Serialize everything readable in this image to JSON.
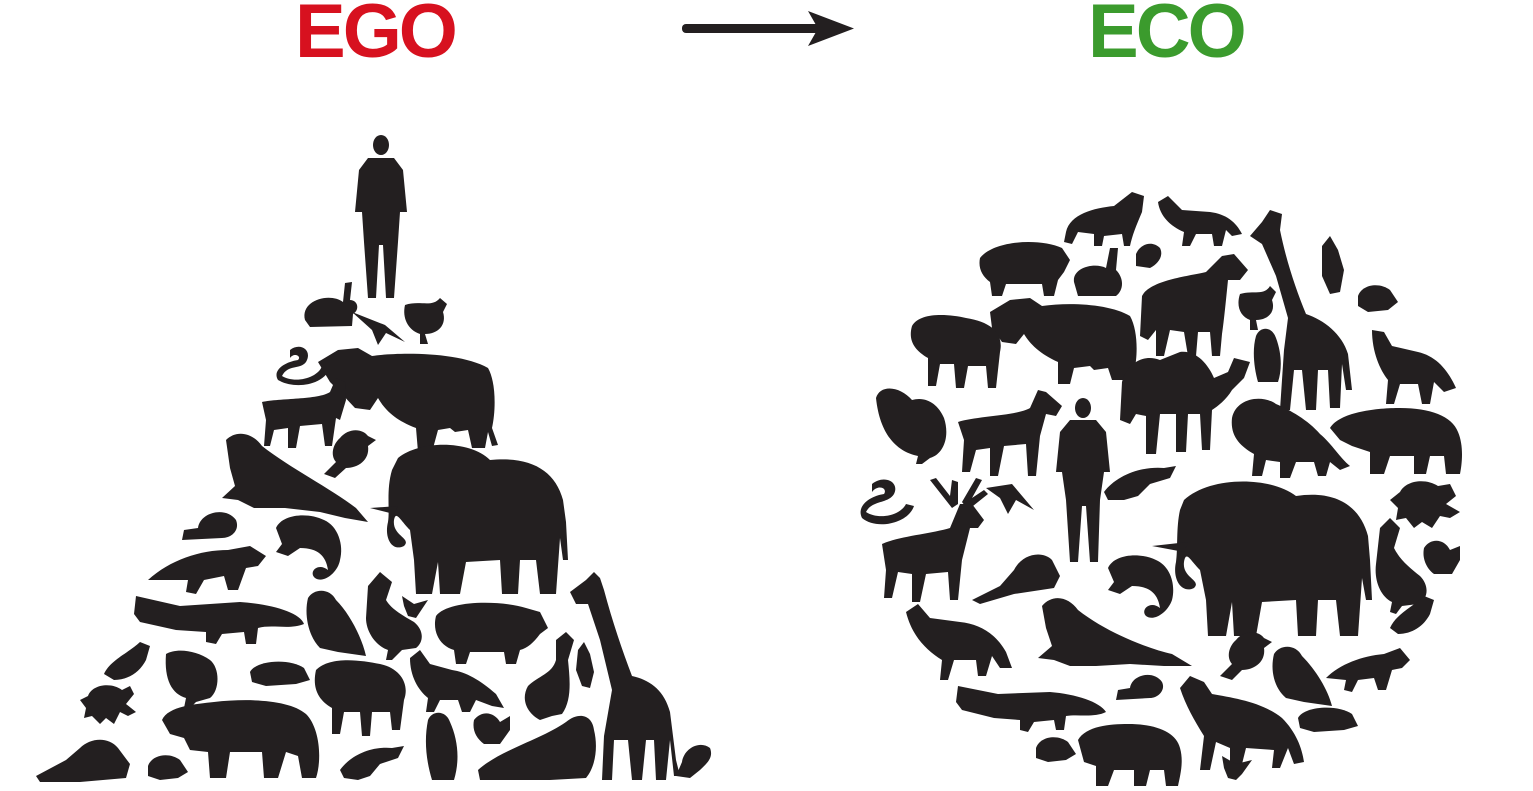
{
  "headings": {
    "left": "EGO",
    "right": "ECO"
  },
  "colors": {
    "ego": "#d7111f",
    "eco": "#3b9b2d",
    "silhouette": "#231f20",
    "background": "#ffffff"
  },
  "icons": {
    "arrow": "arrow-right-icon"
  },
  "pyramid_silhouettes": [
    "person",
    "rabbit",
    "swallow",
    "hen",
    "cobra",
    "buffalo",
    "goat",
    "puffin",
    "walrus",
    "elephant",
    "snail",
    "chameleon",
    "raccoon",
    "crocodile",
    "owl",
    "goose",
    "hummingbird",
    "pig",
    "giraffe",
    "small-bird",
    "turkey",
    "turtle",
    "sheep",
    "fox",
    "cockatoo",
    "duck",
    "crab",
    "polar-bear",
    "beaver",
    "frog",
    "iguana",
    "penguin",
    "squirrel",
    "seal",
    "scorpion"
  ],
  "circle_silhouettes": [
    "dog",
    "fox",
    "giraffe",
    "pig",
    "rabbit",
    "scorpion",
    "cockatoo",
    "frog",
    "horse",
    "hen",
    "buffalo",
    "sheep",
    "penguin",
    "wolf",
    "camel",
    "turkey",
    "goat",
    "person",
    "lion",
    "polar-bear",
    "crab",
    "cobra",
    "deer",
    "swallow",
    "iguana",
    "elephant",
    "goose",
    "squirrel",
    "beaver",
    "chameleon",
    "small-bird",
    "walrus",
    "puffin",
    "owl",
    "raccoon",
    "snail",
    "crocodile",
    "husky",
    "turtle",
    "bear",
    "frog-small",
    "hummingbird"
  ]
}
